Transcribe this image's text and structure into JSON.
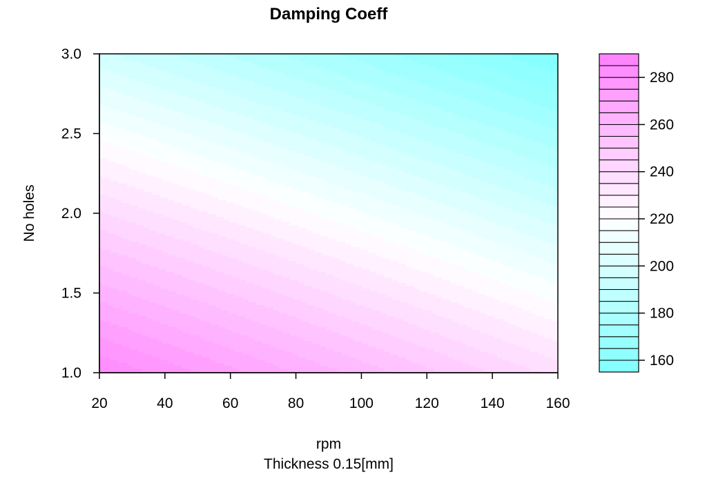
{
  "chart_data": {
    "type": "heatmap",
    "subtype": "filled-contour",
    "title": "Damping Coeff",
    "xlabel": "rpm",
    "xlabel_sub": "Thickness 0.15[mm]",
    "ylabel": "No holes",
    "xlim": [
      20,
      160
    ],
    "ylim": [
      1.0,
      3.0
    ],
    "x_ticks": [
      20,
      40,
      60,
      80,
      100,
      120,
      140,
      160
    ],
    "x_tick_labels": [
      "20",
      "40",
      "60",
      "80",
      "100",
      "120",
      "140",
      "160"
    ],
    "y_ticks": [
      1.0,
      1.5,
      2.0,
      2.5,
      3.0
    ],
    "y_tick_labels": [
      "1.0",
      "1.5",
      "2.0",
      "2.5",
      "3.0"
    ],
    "z_range": [
      155,
      290
    ],
    "z_levels": [
      155,
      160,
      165,
      170,
      175,
      180,
      185,
      190,
      195,
      200,
      205,
      210,
      215,
      220,
      225,
      230,
      235,
      240,
      245,
      250,
      255,
      260,
      265,
      270,
      275,
      280,
      285,
      290
    ],
    "legend_ticks": [
      160,
      180,
      200,
      220,
      240,
      260,
      280
    ],
    "legend_tick_labels": [
      "160",
      "180",
      "200",
      "220",
      "240",
      "260",
      "280"
    ],
    "legend_position": "right",
    "color_scale": {
      "low": "#80ffff",
      "mid": "#ffffff",
      "high": "#ff80ff",
      "mid_value": 220
    },
    "corner_values": {
      "x20_y1": 285,
      "x160_y1": 238,
      "x20_y3": 196,
      "x160_y3": 155
    }
  }
}
